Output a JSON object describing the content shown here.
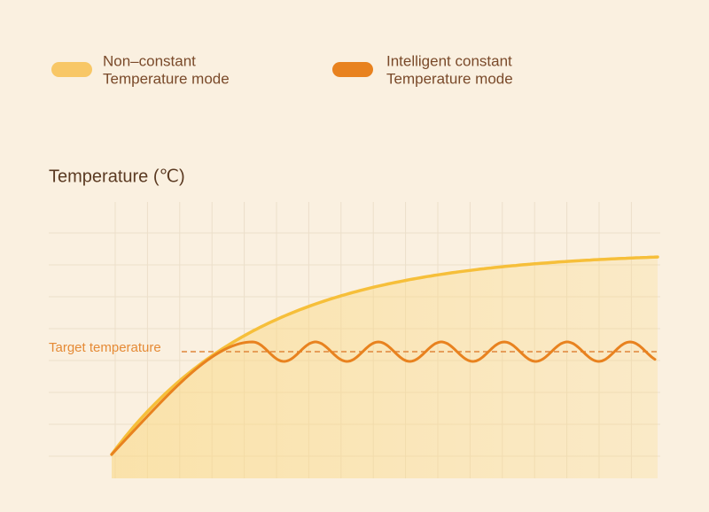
{
  "legend": {
    "items": [
      {
        "lines": [
          "Non–constant",
          "Temperature mode"
        ]
      },
      {
        "lines": [
          "Intelligent constant",
          "Temperature mode"
        ]
      }
    ]
  },
  "axis_label": "Temperature (℃)",
  "target_label": "Target temperature"
}
